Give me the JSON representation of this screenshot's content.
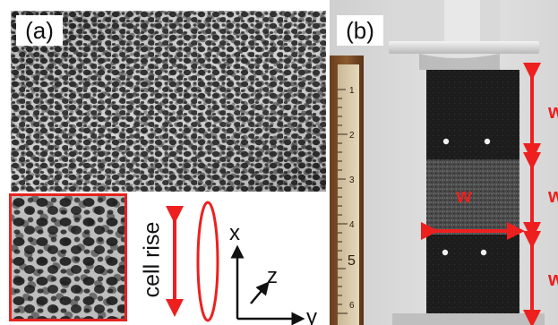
{
  "panel_a": {
    "label": "(a)",
    "cell_rise_label": "cell rise",
    "axes": {
      "x": "x",
      "y": "y",
      "z": "z"
    }
  },
  "panel_b": {
    "label": "(b)",
    "width_label": "w",
    "segment_labels": [
      "w",
      "w",
      "w"
    ],
    "ruler_numbers": [
      "1",
      "2",
      "3",
      "4",
      "5",
      "6"
    ]
  },
  "colors": {
    "annotation_red": "#ee1f1f",
    "inset_border": "#e52421",
    "foam_dark": "#262626",
    "foam_light": "#d8d8d8"
  }
}
